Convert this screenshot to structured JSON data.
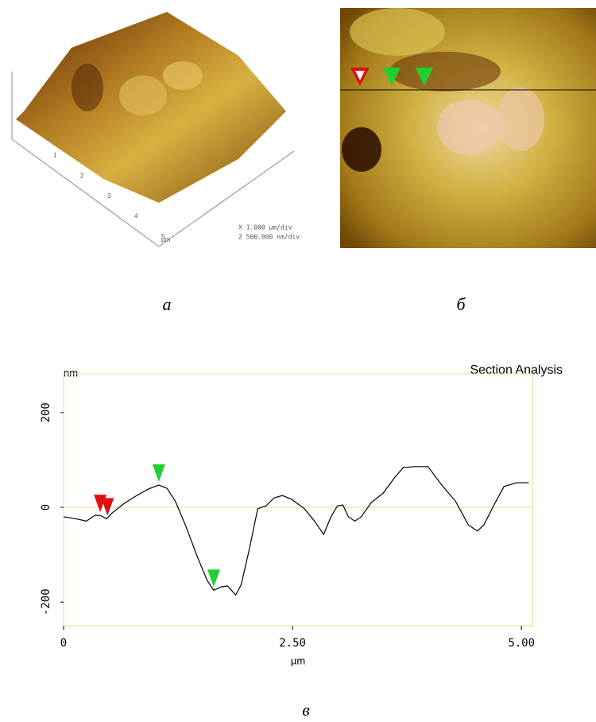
{
  "panel_labels": [
    "а",
    "б",
    "в"
  ],
  "surface_3d": {
    "axis_ticks": [
      "1",
      "2",
      "3",
      "4",
      "5"
    ],
    "unit": "µm",
    "scale_x": "X  1.000 µm/div",
    "scale_z": "Z  500.000 nm/div"
  },
  "chart_data": {
    "type": "line",
    "title": "Section Analysis",
    "y_label": "nm",
    "x_label": "µm",
    "xlim": [
      0,
      5.12
    ],
    "ylim": [
      -250,
      282
    ],
    "xticks": [
      0,
      {
        "value": 2.5,
        "label": "2.50"
      },
      {
        "value": 5,
        "label": "5.00"
      }
    ],
    "yticks": [
      -200,
      0,
      200
    ],
    "zero_line": 0,
    "series": [
      {
        "color": "#000000",
        "x": [
          0,
          0.13,
          0.25,
          0.34,
          0.4,
          0.47,
          0.53,
          0.66,
          0.8,
          0.93,
          1.04,
          1.13,
          1.22,
          1.33,
          1.46,
          1.57,
          1.64,
          1.72,
          1.79,
          1.88,
          1.94,
          2.03,
          2.12,
          2.21,
          2.3,
          2.39,
          2.49,
          2.63,
          2.74,
          2.84,
          2.92,
          2.99,
          3.05,
          3.11,
          3.18,
          3.25,
          3.36,
          3.49,
          3.62,
          3.71,
          3.84,
          3.98,
          4.13,
          4.28,
          4.42,
          4.52,
          4.59,
          4.7,
          4.81,
          4.95,
          5.08
        ],
        "values": [
          -20,
          -24,
          -29,
          -17,
          -17,
          -24,
          -12,
          8,
          25,
          39,
          47,
          40,
          13,
          -37,
          -104,
          -155,
          -175,
          -168,
          -166,
          -185,
          -163,
          -87,
          -3,
          3,
          20,
          25,
          17,
          -3,
          -29,
          -57,
          -20,
          3,
          5,
          -20,
          -29,
          -20,
          10,
          30,
          64,
          84,
          86,
          86,
          47,
          13,
          -37,
          -50,
          -37,
          5,
          44,
          52,
          52
        ]
      }
    ],
    "markers": [
      {
        "color": "#e01010",
        "x": 0.4,
        "y": -17
      },
      {
        "color": "#e01010",
        "x": 0.48,
        "y": -24
      },
      {
        "color": "#20d030",
        "x": 1.04,
        "y": 47
      },
      {
        "color": "#20d030",
        "x": 1.64,
        "y": -175
      }
    ]
  }
}
